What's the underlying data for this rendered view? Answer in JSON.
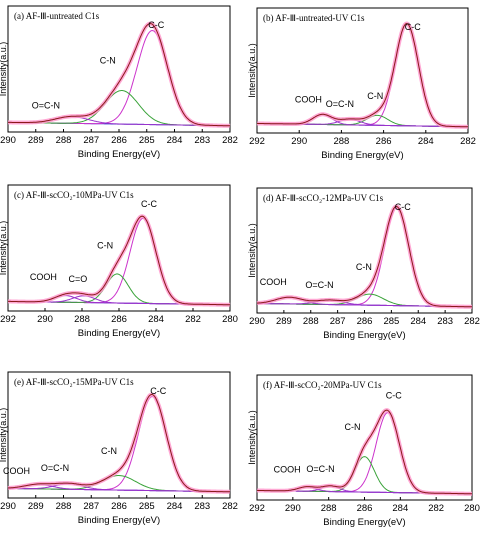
{
  "colors": {
    "c1s_envelope": "#ff99cc",
    "fit_sum": "#8b1a1a",
    "cc": "#cc33cc",
    "cn": "#3aa33a",
    "oxygen": "#9933cc",
    "baseline": "#3333cc"
  },
  "chart_data": [
    {
      "type": "line",
      "panel": "(a)",
      "title": "AF-Ⅲ-untreated C1s",
      "xlabel": "Binding Energy(eV)",
      "ylabel": "Intensity(a.u.)",
      "xlim": [
        290,
        282
      ],
      "xticks": [
        "290",
        "289",
        "288",
        "287",
        "286",
        "285",
        "284",
        "283",
        "282"
      ],
      "peaks": [
        {
          "label": "C-C",
          "center": 284.8,
          "height": 0.84,
          "width": 0.55
        },
        {
          "label": "C-N",
          "center": 285.9,
          "height": 0.3,
          "width": 0.6
        },
        {
          "label": "O=C-N",
          "center": 287.7,
          "height": 0.06,
          "width": 0.6
        }
      ],
      "labels": [
        "C-C",
        "C-N",
        "O=C-N"
      ]
    },
    {
      "type": "line",
      "panel": "(b)",
      "title": "AF-Ⅲ-untreated-UV C1s",
      "xlabel": "Binding Energy(eV)",
      "ylabel": "Intensity(a.u.)",
      "xlim": [
        292,
        282
      ],
      "xticks": [
        "292",
        "290",
        "288",
        "286",
        "284",
        "282"
      ],
      "peaks": [
        {
          "label": "C-C",
          "center": 284.9,
          "height": 0.92,
          "width": 0.55
        },
        {
          "label": "C-N",
          "center": 286.3,
          "height": 0.09,
          "width": 0.5
        },
        {
          "label": "O=C-N",
          "center": 287.6,
          "height": 0.05,
          "width": 0.5
        },
        {
          "label": "COOH",
          "center": 288.9,
          "height": 0.09,
          "width": 0.45
        }
      ],
      "labels": [
        "C-C",
        "C-N",
        "O=C-N",
        "COOH"
      ]
    },
    {
      "type": "line",
      "panel": "(c)",
      "title": "AF-Ⅲ-scCO₂-10MPa-UV C1s",
      "xlabel": "Binding Energy(eV)",
      "ylabel": "Intensity(a.u.)",
      "xlim": [
        292,
        280
      ],
      "xticks": [
        "292",
        "290",
        "288",
        "286",
        "284",
        "282",
        "280"
      ],
      "peaks": [
        {
          "label": "C-C",
          "center": 284.7,
          "height": 0.76,
          "width": 0.7
        },
        {
          "label": "C-N",
          "center": 286.1,
          "height": 0.26,
          "width": 0.6
        },
        {
          "label": "C=O",
          "center": 287.9,
          "height": 0.06,
          "width": 0.6
        },
        {
          "label": "COOH",
          "center": 288.9,
          "height": 0.06,
          "width": 0.6
        }
      ],
      "labels": [
        "C-C",
        "C-N",
        "C=O",
        "COOH"
      ]
    },
    {
      "type": "line",
      "panel": "(d)",
      "title": "AF-Ⅲ-scCO₂-12MPa-UV C1s",
      "xlabel": "Binding Energy(eV)",
      "ylabel": "Intensity(a.u.)",
      "xlim": [
        290,
        282
      ],
      "xticks": [
        "290",
        "289",
        "288",
        "287",
        "286",
        "285",
        "284",
        "283",
        "282"
      ],
      "peaks": [
        {
          "label": "C-C",
          "center": 284.8,
          "height": 0.88,
          "width": 0.45
        },
        {
          "label": "C-N",
          "center": 285.8,
          "height": 0.1,
          "width": 0.5
        },
        {
          "label": "O=C-N",
          "center": 287.3,
          "height": 0.04,
          "width": 0.5
        },
        {
          "label": "COOH",
          "center": 288.8,
          "height": 0.06,
          "width": 0.5
        }
      ],
      "labels": [
        "C-C",
        "C-N",
        "O=C-N",
        "COOH"
      ]
    },
    {
      "type": "line",
      "panel": "(e)",
      "title": "AF-Ⅲ-scCO₂-15MPa-UV C1s",
      "xlabel": "Binding Energy(eV)",
      "ylabel": "Intensity(a.u.)",
      "xlim": [
        290,
        282
      ],
      "xticks": [
        "290",
        "289",
        "288",
        "287",
        "286",
        "285",
        "284",
        "283",
        "282"
      ],
      "peaks": [
        {
          "label": "C-C",
          "center": 284.8,
          "height": 0.84,
          "width": 0.5
        },
        {
          "label": "C-N",
          "center": 286.0,
          "height": 0.13,
          "width": 0.6
        },
        {
          "label": "O=C-N",
          "center": 287.8,
          "height": 0.05,
          "width": 0.5
        },
        {
          "label": "COOH",
          "center": 288.9,
          "height": 0.04,
          "width": 0.5
        }
      ],
      "labels": [
        "C-C",
        "C-N",
        "O=C-N",
        "COOH"
      ]
    },
    {
      "type": "line",
      "panel": "(f)",
      "title": "AF-Ⅲ-scCO₂-20MPa-UV C1s",
      "xlabel": "Binding Energy(eV)",
      "ylabel": "Intensity(a.u.)",
      "xlim": [
        292,
        280
      ],
      "xticks": [
        "292",
        "290",
        "288",
        "286",
        "284",
        "282",
        "280"
      ],
      "peaks": [
        {
          "label": "C-C",
          "center": 284.7,
          "height": 0.72,
          "width": 0.65
        },
        {
          "label": "C-N",
          "center": 286.0,
          "height": 0.32,
          "width": 0.55
        },
        {
          "label": "O=C-N",
          "center": 287.9,
          "height": 0.05,
          "width": 0.5
        },
        {
          "label": "COOH",
          "center": 289.2,
          "height": 0.04,
          "width": 0.5
        }
      ],
      "labels": [
        "C-C",
        "C-N",
        "O=C-N",
        "COOH"
      ]
    }
  ]
}
